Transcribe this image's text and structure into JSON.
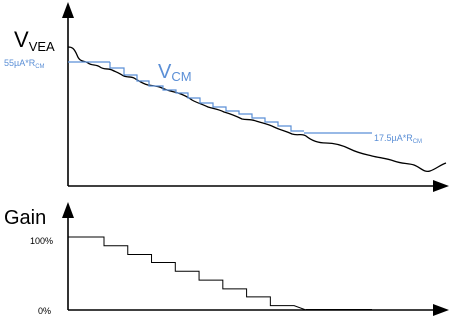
{
  "top_plot": {
    "y_label_main": "V",
    "y_label_sub": "VEA",
    "curve_label_main": "V",
    "curve_label_sub": "CM",
    "upper_level_label_main": "55µA*R",
    "upper_level_label_sub": "CM",
    "lower_level_label_main": "17.5µA*R",
    "lower_level_label_sub": "CM"
  },
  "bottom_plot": {
    "y_label": "Gain",
    "tick_100": "100%",
    "tick_0": "0%",
    "gain_steps_percent": [
      100,
      100,
      88,
      88,
      76,
      76,
      65,
      65,
      53,
      53,
      41,
      41,
      29,
      29,
      18,
      18,
      6,
      0
    ]
  },
  "colors": {
    "axis": "#000000",
    "curve": "#000000",
    "vcm": "#5b8fd6",
    "gain_line": "#000000"
  }
}
